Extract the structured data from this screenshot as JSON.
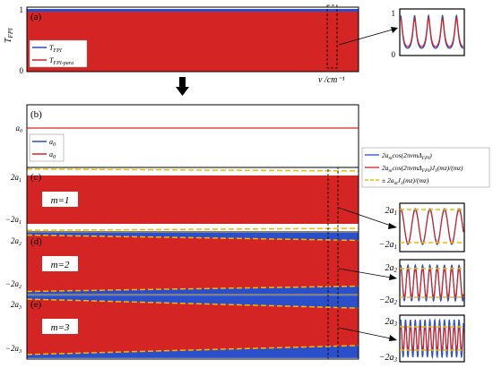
{
  "colors": {
    "blue": "#2a4fc8",
    "red": "#d42424",
    "yellow": "#f2b705",
    "frame": "#000000",
    "arrow": "#000000"
  },
  "text": {
    "axis_unit": "ν /cm⁻¹"
  },
  "chart_data": [
    {
      "id": "a",
      "panel_label": "(a)",
      "type": "area",
      "ylabel": "T_FPI",
      "ylim": [
        0,
        1
      ],
      "yticks": [
        "0",
        "1"
      ],
      "xlabel": "ν /cm⁻¹",
      "legend": {
        "position": "top-left",
        "entries": [
          "T_FPI",
          "T_FPI-para"
        ]
      },
      "series": [
        {
          "name": "T_FPI",
          "color": "blue",
          "min": 0,
          "max": 0.97
        },
        {
          "name": "T_FPI-para",
          "color": "red",
          "min": 0,
          "max": 0.92
        }
      ],
      "inset": {
        "yticks": [
          "0",
          "1"
        ],
        "ylim": [
          0,
          1
        ]
      }
    },
    {
      "id": "b",
      "panel_label": "(b)",
      "type": "line",
      "ytick": "a0",
      "legend": {
        "position": "top-left",
        "entries": [
          "a0",
          "a0"
        ]
      },
      "series": [
        {
          "name": "a0",
          "color": "blue"
        },
        {
          "name": "a0",
          "color": "red"
        }
      ]
    },
    {
      "id": "c",
      "panel_label": "(c)",
      "type": "area",
      "annotation": "m=1",
      "yticks": [
        "2a1",
        "−2a1"
      ],
      "legend": {
        "position": "top-right",
        "entries": [
          "2a_m cos(2πνmΔ_FPI)",
          "2a_m cos(2πνmΔ_FPI) J_1(mz)/(mz)",
          "± 2a_m J_1(mz)/(mz)"
        ]
      },
      "envelope": {
        "start": 0.95,
        "end": 0.89
      },
      "inset": {
        "yticks": [
          "2a1",
          "−2a1"
        ]
      }
    },
    {
      "id": "d",
      "panel_label": "(d)",
      "type": "area",
      "annotation": "m=2",
      "yticks": [
        "2a2",
        "−2a2"
      ],
      "envelope": {
        "start": 0.9,
        "end": 0.73
      },
      "inset": {
        "yticks": [
          "2a2",
          "−2a2"
        ]
      }
    },
    {
      "id": "e",
      "panel_label": "(e)",
      "type": "area",
      "annotation": "m=3",
      "yticks": [
        "2a3",
        "−2a3"
      ],
      "envelope": {
        "start": 0.86,
        "end": 0.58
      },
      "inset": {
        "yticks": [
          "2a3",
          "−2a3"
        ]
      }
    }
  ]
}
